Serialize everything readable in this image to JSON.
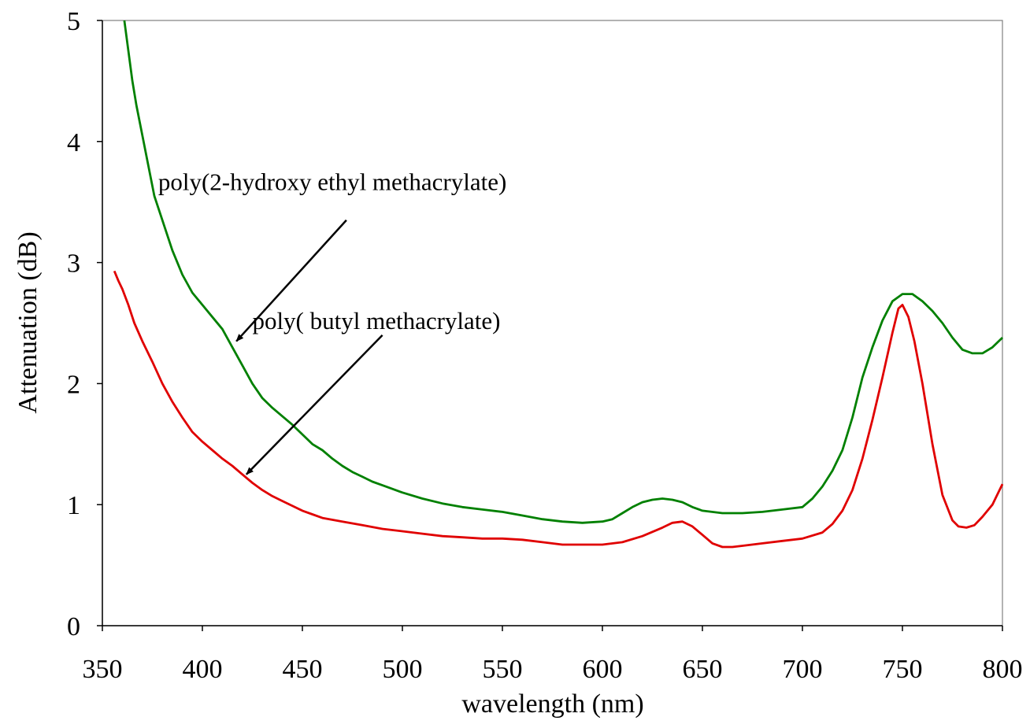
{
  "chart_data": {
    "type": "line",
    "title": "",
    "xlabel": "wavelength (nm)",
    "ylabel": "Attenuation (dB)",
    "xlim": [
      350,
      800
    ],
    "ylim": [
      0,
      5
    ],
    "xticks": [
      350,
      400,
      450,
      500,
      550,
      600,
      650,
      700,
      750,
      800
    ],
    "yticks": [
      0,
      1,
      2,
      3,
      4,
      5
    ],
    "grid": false,
    "legend": "none",
    "series": [
      {
        "color": "#008000",
        "points": [
          [
            361,
            5.0
          ],
          [
            363,
            4.75
          ],
          [
            365,
            4.5
          ],
          [
            367,
            4.3
          ],
          [
            370,
            4.05
          ],
          [
            373,
            3.8
          ],
          [
            376,
            3.55
          ],
          [
            380,
            3.35
          ],
          [
            385,
            3.1
          ],
          [
            390,
            2.9
          ],
          [
            395,
            2.75
          ],
          [
            400,
            2.65
          ],
          [
            405,
            2.55
          ],
          [
            410,
            2.45
          ],
          [
            415,
            2.3
          ],
          [
            420,
            2.15
          ],
          [
            425,
            2.0
          ],
          [
            430,
            1.88
          ],
          [
            435,
            1.8
          ],
          [
            440,
            1.73
          ],
          [
            445,
            1.66
          ],
          [
            450,
            1.58
          ],
          [
            455,
            1.5
          ],
          [
            460,
            1.45
          ],
          [
            465,
            1.38
          ],
          [
            470,
            1.32
          ],
          [
            475,
            1.27
          ],
          [
            480,
            1.23
          ],
          [
            485,
            1.19
          ],
          [
            490,
            1.16
          ],
          [
            495,
            1.13
          ],
          [
            500,
            1.1
          ],
          [
            510,
            1.05
          ],
          [
            520,
            1.01
          ],
          [
            530,
            0.98
          ],
          [
            540,
            0.96
          ],
          [
            550,
            0.94
          ],
          [
            560,
            0.91
          ],
          [
            570,
            0.88
          ],
          [
            580,
            0.86
          ],
          [
            590,
            0.85
          ],
          [
            600,
            0.86
          ],
          [
            605,
            0.88
          ],
          [
            610,
            0.93
          ],
          [
            615,
            0.98
          ],
          [
            620,
            1.02
          ],
          [
            625,
            1.04
          ],
          [
            630,
            1.05
          ],
          [
            635,
            1.04
          ],
          [
            640,
            1.02
          ],
          [
            645,
            0.98
          ],
          [
            650,
            0.95
          ],
          [
            660,
            0.93
          ],
          [
            670,
            0.93
          ],
          [
            680,
            0.94
          ],
          [
            690,
            0.96
          ],
          [
            700,
            0.98
          ],
          [
            705,
            1.05
          ],
          [
            710,
            1.15
          ],
          [
            715,
            1.28
          ],
          [
            720,
            1.45
          ],
          [
            725,
            1.72
          ],
          [
            730,
            2.05
          ],
          [
            735,
            2.3
          ],
          [
            740,
            2.52
          ],
          [
            745,
            2.68
          ],
          [
            750,
            2.74
          ],
          [
            755,
            2.74
          ],
          [
            760,
            2.68
          ],
          [
            765,
            2.6
          ],
          [
            770,
            2.5
          ],
          [
            775,
            2.38
          ],
          [
            780,
            2.28
          ],
          [
            785,
            2.25
          ],
          [
            790,
            2.25
          ],
          [
            795,
            2.3
          ],
          [
            800,
            2.38
          ]
        ]
      },
      {
        "color": "#e00000",
        "points": [
          [
            356,
            2.93
          ],
          [
            358,
            2.85
          ],
          [
            360,
            2.78
          ],
          [
            363,
            2.65
          ],
          [
            366,
            2.5
          ],
          [
            370,
            2.35
          ],
          [
            375,
            2.18
          ],
          [
            380,
            2.0
          ],
          [
            385,
            1.85
          ],
          [
            390,
            1.72
          ],
          [
            395,
            1.6
          ],
          [
            400,
            1.52
          ],
          [
            405,
            1.45
          ],
          [
            410,
            1.38
          ],
          [
            415,
            1.32
          ],
          [
            420,
            1.25
          ],
          [
            425,
            1.18
          ],
          [
            430,
            1.12
          ],
          [
            435,
            1.07
          ],
          [
            440,
            1.03
          ],
          [
            445,
            0.99
          ],
          [
            450,
            0.95
          ],
          [
            455,
            0.92
          ],
          [
            460,
            0.89
          ],
          [
            470,
            0.86
          ],
          [
            480,
            0.83
          ],
          [
            490,
            0.8
          ],
          [
            500,
            0.78
          ],
          [
            510,
            0.76
          ],
          [
            520,
            0.74
          ],
          [
            530,
            0.73
          ],
          [
            540,
            0.72
          ],
          [
            550,
            0.72
          ],
          [
            560,
            0.71
          ],
          [
            570,
            0.69
          ],
          [
            580,
            0.67
          ],
          [
            590,
            0.67
          ],
          [
            600,
            0.67
          ],
          [
            610,
            0.69
          ],
          [
            620,
            0.74
          ],
          [
            630,
            0.81
          ],
          [
            635,
            0.85
          ],
          [
            640,
            0.86
          ],
          [
            645,
            0.82
          ],
          [
            650,
            0.75
          ],
          [
            655,
            0.68
          ],
          [
            660,
            0.65
          ],
          [
            665,
            0.65
          ],
          [
            670,
            0.66
          ],
          [
            680,
            0.68
          ],
          [
            690,
            0.7
          ],
          [
            700,
            0.72
          ],
          [
            710,
            0.77
          ],
          [
            715,
            0.84
          ],
          [
            720,
            0.95
          ],
          [
            725,
            1.12
          ],
          [
            730,
            1.38
          ],
          [
            735,
            1.7
          ],
          [
            740,
            2.05
          ],
          [
            745,
            2.42
          ],
          [
            748,
            2.62
          ],
          [
            750,
            2.65
          ],
          [
            753,
            2.55
          ],
          [
            756,
            2.35
          ],
          [
            760,
            2.0
          ],
          [
            765,
            1.5
          ],
          [
            770,
            1.08
          ],
          [
            775,
            0.87
          ],
          [
            778,
            0.82
          ],
          [
            782,
            0.81
          ],
          [
            786,
            0.83
          ],
          [
            790,
            0.9
          ],
          [
            795,
            1.0
          ],
          [
            800,
            1.17
          ]
        ]
      }
    ],
    "annotations": [
      {
        "text": "poly(2-hydroxy ethyl methacrylate)",
        "text_x": 465,
        "text_y": 3.6,
        "arrow_from": [
          472,
          3.35
        ],
        "arrow_to": [
          417,
          2.35
        ]
      },
      {
        "text": "poly( butyl methacrylate)",
        "text_x": 487,
        "text_y": 2.45,
        "arrow_from": [
          490,
          2.4
        ],
        "arrow_to": [
          422,
          1.25
        ]
      }
    ]
  }
}
